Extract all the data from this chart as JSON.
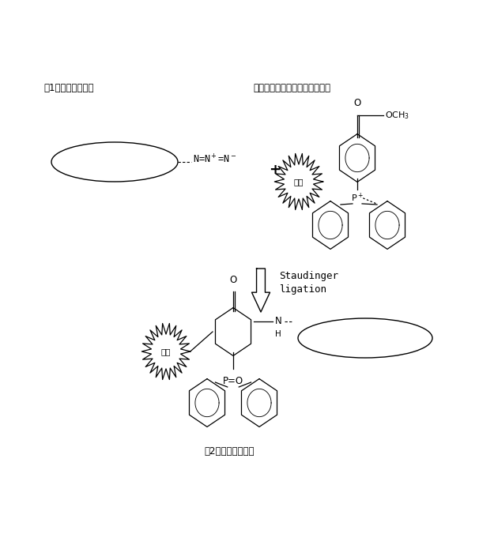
{
  "bg_color": "#ffffff",
  "figsize": [
    6.06,
    7.09
  ],
  "dpi": 100,
  "label_top_left": "第1の非天然蛋白質",
  "label_top_right": "トリアリールホスフィン誘導体",
  "label_bottom": "第2の非天然蛋白質",
  "staudinger_line1": "Staudinger",
  "staudinger_line2": "ligation",
  "fluorescent_text": "蛍光",
  "azide_formula": "N=N$^+$=N$^-$",
  "och3_text": "OCH$_3$",
  "o_text": "O",
  "p_text": "P",
  "po_text": "P=O",
  "nh_text": "N",
  "h_text": "H",
  "plus_text": "+",
  "lw_ellipse": 1.0,
  "lw_mol": 0.9,
  "lw_arrow": 1.5
}
